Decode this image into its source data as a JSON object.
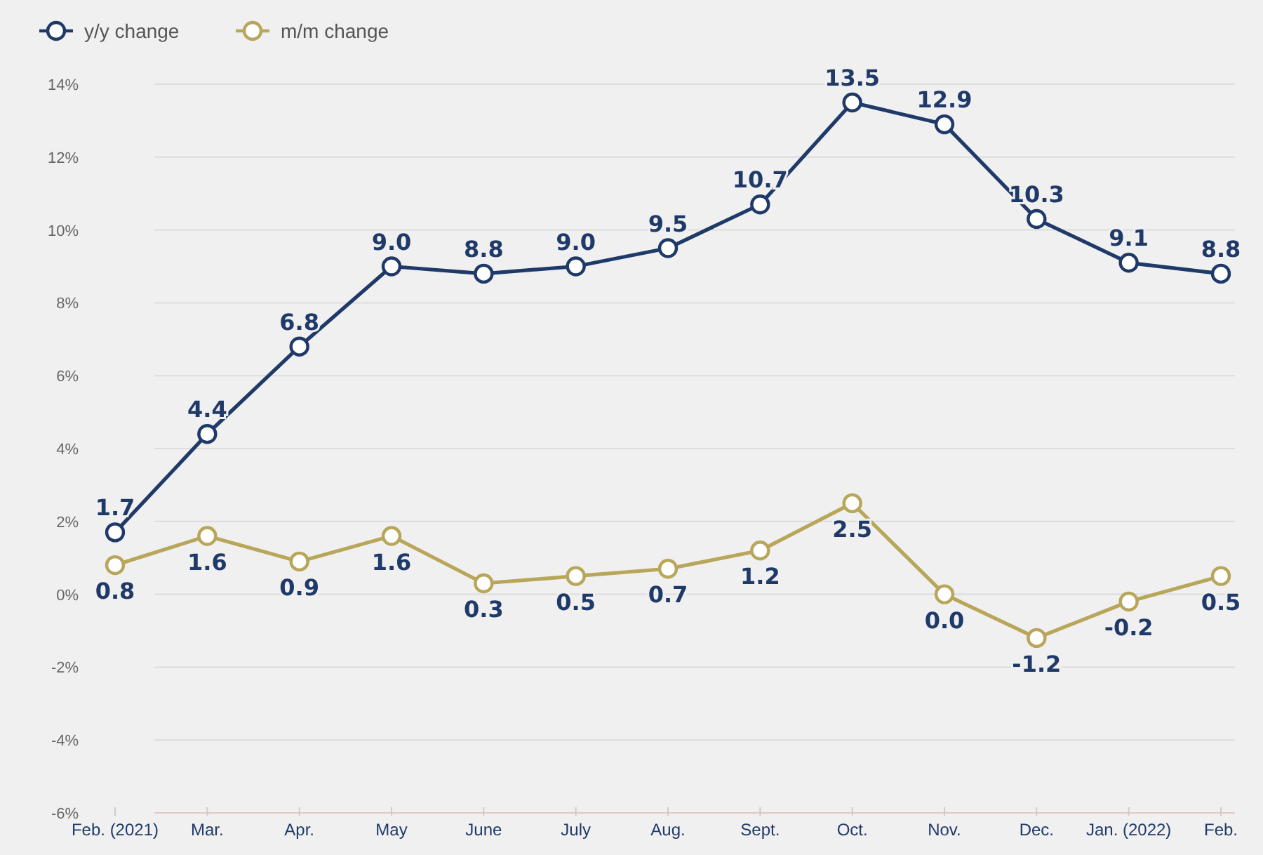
{
  "chart_data": {
    "type": "line",
    "categories": [
      "Feb. (2021)",
      "Mar.",
      "Apr.",
      "May",
      "June",
      "July",
      "Aug.",
      "Sept.",
      "Oct.",
      "Nov.",
      "Dec.",
      "Jan. (2022)",
      "Feb."
    ],
    "series": [
      {
        "name": "y/y change",
        "color": "#1f3a68",
        "values": [
          1.7,
          4.4,
          6.8,
          9.0,
          8.8,
          9.0,
          9.5,
          10.7,
          13.5,
          12.9,
          10.3,
          9.1,
          8.8
        ],
        "value_labels": [
          "1.7",
          "4.4",
          "6.8",
          "9.0",
          "8.8",
          "9.0",
          "9.5",
          "10.7",
          "13.5",
          "12.9",
          "10.3",
          "9.1",
          "8.8"
        ]
      },
      {
        "name": "m/m change",
        "color": "#b8a65a",
        "values": [
          0.8,
          1.6,
          0.9,
          1.6,
          0.3,
          0.5,
          0.7,
          1.2,
          2.5,
          0.0,
          -1.2,
          -0.2,
          0.5
        ],
        "value_labels": [
          "0.8",
          "1.6",
          "0.9",
          "1.6",
          "0.3",
          "0.5",
          "0.7",
          "1.2",
          "2.5",
          "0.0",
          "-1.2",
          "-0.2",
          "0.5"
        ]
      }
    ],
    "ylim": [
      -6,
      14
    ],
    "yticks": [
      {
        "value": -6,
        "label": "-6%"
      },
      {
        "value": -4,
        "label": "-4%"
      },
      {
        "value": -2,
        "label": "-2%"
      },
      {
        "value": 0,
        "label": "0%"
      },
      {
        "value": 2,
        "label": "2%"
      },
      {
        "value": 4,
        "label": "4%"
      },
      {
        "value": 6,
        "label": "6%"
      },
      {
        "value": 8,
        "label": "8%"
      },
      {
        "value": 10,
        "label": "10%"
      },
      {
        "value": 12,
        "label": "12%"
      },
      {
        "value": 14,
        "label": "14%"
      }
    ],
    "grid": "y",
    "legend": "top left",
    "marker": "circle",
    "line_style": "solid"
  }
}
